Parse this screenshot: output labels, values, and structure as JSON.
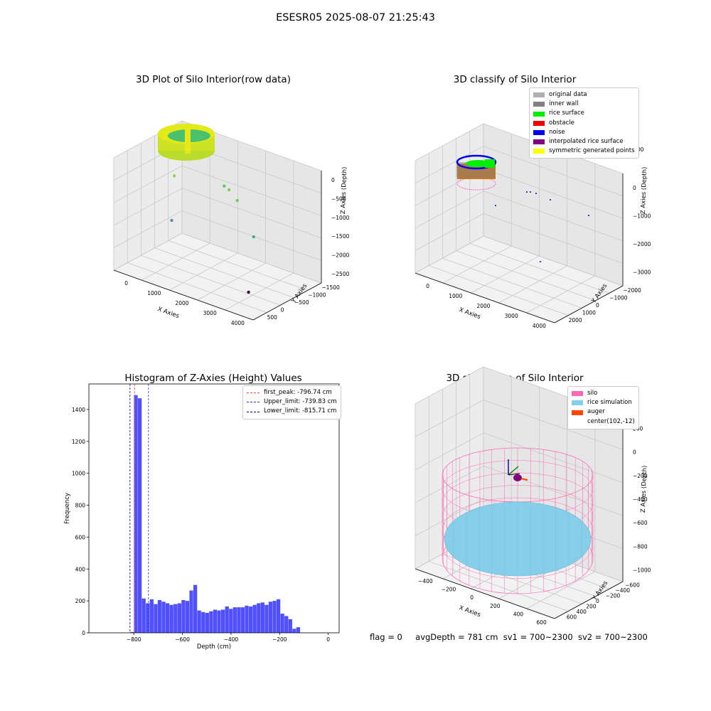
{
  "suptitle": "ESESR05 2025-08-07 21:25:43",
  "footer": {
    "flag": "flag = 0",
    "avg_depth": "avgDepth = 781 cm",
    "sv1": "sv1 = 700~2300",
    "sv2": "sv2 = 700~2300"
  },
  "colors": {
    "pane": "#ebebeb",
    "grid": "#c8c8c8",
    "hist_bar": "#5050ff",
    "first_peak": "#ff4444",
    "upper_limit": "#3333cc",
    "lower_limit": "#000088"
  },
  "chart_data": [
    {
      "type": "scatter",
      "projection": "3d",
      "title": "3D Plot of Silo Interior(row data)",
      "xlabel": "X Axies",
      "ylabel": "Y Axies",
      "zlabel": "Z Axies (Depth)",
      "x_ticks": [
        "0",
        "1000",
        "2000",
        "3000",
        "4000"
      ],
      "y_ticks": [
        "500",
        "0",
        "−500",
        "−1000",
        "−1500"
      ],
      "z_ticks": [
        "0",
        "−500",
        "−1000",
        "−1500",
        "−2000",
        "−2500"
      ],
      "colormap": "viridis",
      "points": [
        {
          "x": 600,
          "y": -200,
          "z": -700
        },
        {
          "x": 1800,
          "y": 200,
          "z": -780
        },
        {
          "x": 2000,
          "y": 150,
          "z": -800
        },
        {
          "x": 2400,
          "y": 0,
          "z": -900
        },
        {
          "x": 3200,
          "y": -300,
          "z": -1500
        },
        {
          "x": 800,
          "y": -500,
          "z": -1700
        },
        {
          "x": 3600,
          "y": -900,
          "z": -2600
        }
      ]
    },
    {
      "type": "scatter",
      "projection": "3d",
      "title": "3D classify of Silo Interior",
      "xlabel": "X Axies",
      "ylabel": "Y Axies",
      "zlabel": "Z Axies (Depth)",
      "x_ticks": [
        "0",
        "1000",
        "2000",
        "3000",
        "4000"
      ],
      "y_ticks": [
        "2000",
        "1000",
        "0",
        "−1000",
        "−2000"
      ],
      "z_ticks": [
        "0",
        "−1000",
        "−2000",
        "−3000"
      ],
      "z_tick_partial": "00",
      "legend": [
        {
          "label": "original data",
          "color": "#b0b0b0"
        },
        {
          "label": "inner wall",
          "color": "#808080"
        },
        {
          "label": "rice surface",
          "color": "#00ee00"
        },
        {
          "label": "obstacle",
          "color": "#ee0000"
        },
        {
          "label": "noise",
          "color": "#0000ee"
        },
        {
          "label": "interpolated rice surface",
          "color": "#800080"
        },
        {
          "label": "symmetric generated points",
          "color": "#ffff00"
        }
      ],
      "legend_position": "upper right"
    },
    {
      "type": "bar",
      "title": "Histogram of Z-Axies (Height) Values",
      "xlabel": "Depth (cm)",
      "ylabel": "Frequency",
      "xlim": [
        -985,
        45
      ],
      "ylim": [
        0,
        1560
      ],
      "x_ticks": [
        -800,
        -600,
        -400,
        -200,
        0
      ],
      "y_ticks": [
        0,
        200,
        400,
        600,
        800,
        1000,
        1200,
        1400
      ],
      "bin_width": 16.3,
      "bin_start": -815.7,
      "values": [
        5,
        1490,
        1470,
        215,
        185,
        210,
        180,
        205,
        195,
        185,
        175,
        180,
        185,
        205,
        200,
        265,
        300,
        140,
        130,
        125,
        135,
        145,
        140,
        145,
        165,
        150,
        160,
        160,
        160,
        170,
        165,
        175,
        185,
        190,
        175,
        195,
        200,
        210,
        120,
        105,
        85,
        25,
        35
      ],
      "vlines": [
        {
          "x": -796.74,
          "label": "first_peak: -796.74 cm",
          "color": "#ff4444"
        },
        {
          "x": -739.83,
          "label": "Upper_limit: -739.83 cm",
          "color": "#3333cc"
        },
        {
          "x": -815.71,
          "label": "Lower_limit: -815.71 cm",
          "color": "#000088"
        }
      ],
      "legend_position": "upper right"
    },
    {
      "type": "scatter",
      "projection": "3d",
      "title": "3D simulation of Silo Interior",
      "xlabel": "X Axies",
      "ylabel": "Y Axies",
      "zlabel": "Z Axies (Depth)",
      "x_ticks": [
        "−400",
        "−200",
        "0",
        "200",
        "400",
        "600"
      ],
      "y_ticks": [
        "600",
        "400",
        "200",
        "0",
        "−200",
        "−400",
        "−600"
      ],
      "z_ticks": [
        "200",
        "0",
        "−200",
        "−400",
        "−600",
        "−800",
        "−1000"
      ],
      "legend": [
        {
          "label": "silo",
          "color": "#ff69b4"
        },
        {
          "label": "rice simulation",
          "color": "#87ceeb"
        },
        {
          "label": "auger",
          "color": "#ff4500"
        },
        {
          "label": "center(102,-12)",
          "color": ""
        }
      ],
      "legend_position": "upper right"
    }
  ]
}
